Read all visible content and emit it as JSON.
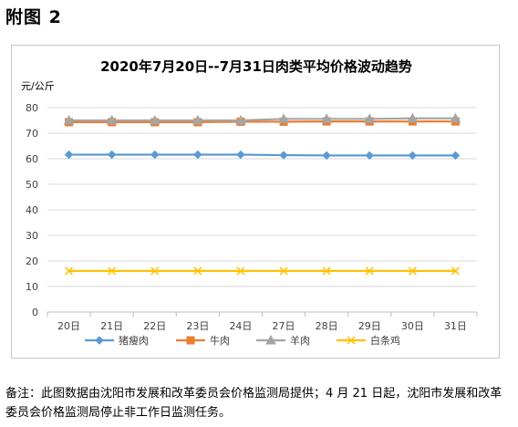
{
  "figure_label": "附图 2",
  "note": "备注：此图数据由沈阳市发展和改革委员会价格监测局提供；4 月 21 日起，沈阳市发展和改革委员会价格监测局停止非工作日监测任务。",
  "chart_data": {
    "type": "line",
    "title": "2020年7月20日--7月31日肉类平均价格波动趋势",
    "ylabel": "元/公斤",
    "xlabel": "",
    "categories": [
      "20日",
      "21日",
      "22日",
      "23日",
      "24日",
      "27日",
      "28日",
      "29日",
      "30日",
      "31日"
    ],
    "ylim": [
      0,
      80
    ],
    "yticks": [
      0,
      10,
      20,
      30,
      40,
      50,
      60,
      70,
      80
    ],
    "grid": true,
    "legend_position": "bottom",
    "series": [
      {
        "name": "猪瘦肉",
        "color": "#5b9bd5",
        "marker": "diamond",
        "values": [
          61.6,
          61.6,
          61.6,
          61.6,
          61.6,
          61.4,
          61.3,
          61.3,
          61.3,
          61.3
        ]
      },
      {
        "name": "牛肉",
        "color": "#ed7d31",
        "marker": "square",
        "values": [
          74.3,
          74.3,
          74.3,
          74.3,
          74.5,
          74.5,
          74.6,
          74.6,
          74.6,
          74.6
        ]
      },
      {
        "name": "羊肉",
        "color": "#a5a5a5",
        "marker": "triangle",
        "values": [
          75.0,
          75.0,
          75.0,
          75.0,
          75.0,
          75.6,
          75.6,
          75.6,
          75.8,
          75.8
        ]
      },
      {
        "name": "白条鸡",
        "color": "#ffc000",
        "marker": "x",
        "values": [
          16.1,
          16.1,
          16.1,
          16.1,
          16.1,
          16.1,
          16.1,
          16.1,
          16.1,
          16.1
        ]
      }
    ]
  }
}
